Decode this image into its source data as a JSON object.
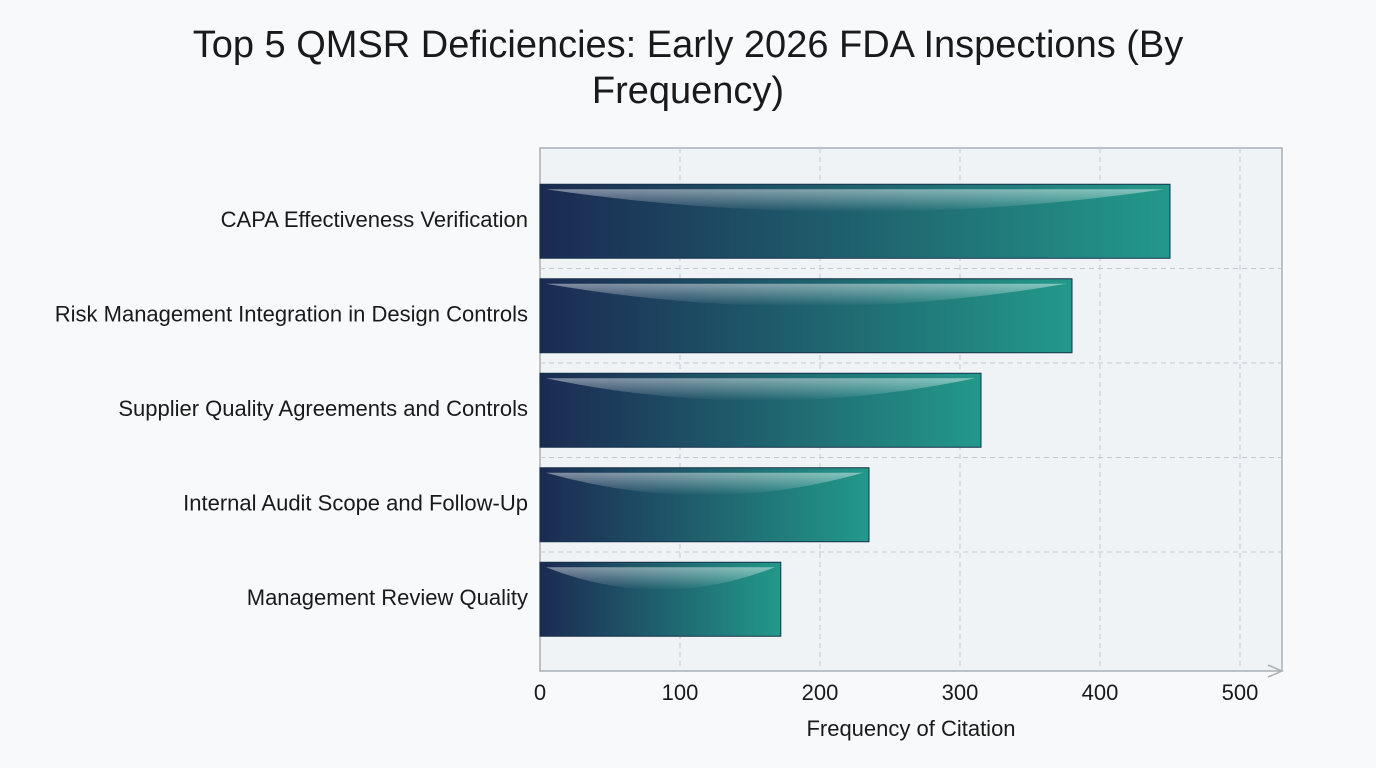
{
  "chart_data": {
    "type": "bar",
    "orientation": "horizontal",
    "title": "Top 5 QMSR Deficiencies: Early 2026 FDA Inspections (By Frequency)",
    "x_label": "Frequency of Citation",
    "categories": [
      "CAPA Effectiveness Verification",
      "Risk Management Integration in Design Controls",
      "Supplier Quality Agreements and Controls",
      "Internal Audit Scope and Follow-Up",
      "Management Review Quality"
    ],
    "values": [
      450,
      380,
      315,
      235,
      172
    ],
    "color": [
      "#1b2a52",
      "#23998a"
    ],
    "xlim": [
      0,
      530
    ],
    "xticks": [
      0,
      100,
      200,
      300,
      400,
      500
    ],
    "grid": true
  }
}
